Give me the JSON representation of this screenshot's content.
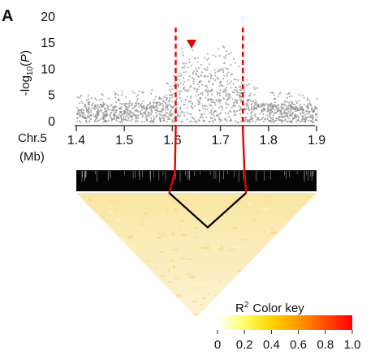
{
  "chart_data": {
    "type": "scatter",
    "panel_label": "A",
    "ylabel_parts": [
      "-log",
      "10",
      "(",
      "P",
      ")"
    ],
    "y_ticks": [
      "0",
      "5",
      "10",
      "15",
      "20"
    ],
    "ylim": [
      0,
      22
    ],
    "x_axis_name_lines": [
      "Chr.5",
      "(Mb)"
    ],
    "x_ticks": [
      "1.4",
      "1.5",
      "1.6",
      "1.7",
      "1.8",
      "1.9"
    ],
    "xlim": [
      1.4,
      1.9
    ],
    "highlight_region_mb": [
      1.59,
      1.75
    ],
    "peak_marker_mb": 1.64,
    "association_profile": [
      {
        "x": 1.4,
        "y_typ": 2.5,
        "y_max": 5.5
      },
      {
        "x": 1.45,
        "y_typ": 2.5,
        "y_max": 5.5
      },
      {
        "x": 1.5,
        "y_typ": 2.6,
        "y_max": 6
      },
      {
        "x": 1.55,
        "y_typ": 2.7,
        "y_max": 6
      },
      {
        "x": 1.58,
        "y_typ": 3,
        "y_max": 7
      },
      {
        "x": 1.6,
        "y_typ": 5,
        "y_max": 11
      },
      {
        "x": 1.62,
        "y_typ": 8,
        "y_max": 15
      },
      {
        "x": 1.64,
        "y_typ": 10,
        "y_max": 16
      },
      {
        "x": 1.66,
        "y_typ": 8,
        "y_max": 14
      },
      {
        "x": 1.68,
        "y_typ": 7,
        "y_max": 13
      },
      {
        "x": 1.7,
        "y_typ": 8,
        "y_max": 15
      },
      {
        "x": 1.72,
        "y_typ": 7,
        "y_max": 14
      },
      {
        "x": 1.74,
        "y_typ": 5,
        "y_max": 11
      },
      {
        "x": 1.76,
        "y_typ": 3,
        "y_max": 7
      },
      {
        "x": 1.8,
        "y_typ": 2.5,
        "y_max": 6
      },
      {
        "x": 1.85,
        "y_typ": 2.5,
        "y_max": 5.5
      },
      {
        "x": 1.9,
        "y_typ": 2.5,
        "y_max": 5
      }
    ],
    "ld_heatmap": {
      "title_r": "R",
      "title_sup": "2",
      "title_rest": "Color key",
      "scale_ticks": [
        "0",
        "0.2",
        "0.4",
        "0.6",
        "0.8",
        "1.0"
      ],
      "colors": [
        "#ffffff",
        "#ffff66",
        "#ffd400",
        "#ff9900",
        "#ff4d00",
        "#ff0000"
      ],
      "block_bounds_mb": [
        1.59,
        1.75
      ]
    },
    "colors": {
      "points": "#8c8c8c",
      "highlight": "#e60000",
      "ld_block": "#000000"
    }
  }
}
